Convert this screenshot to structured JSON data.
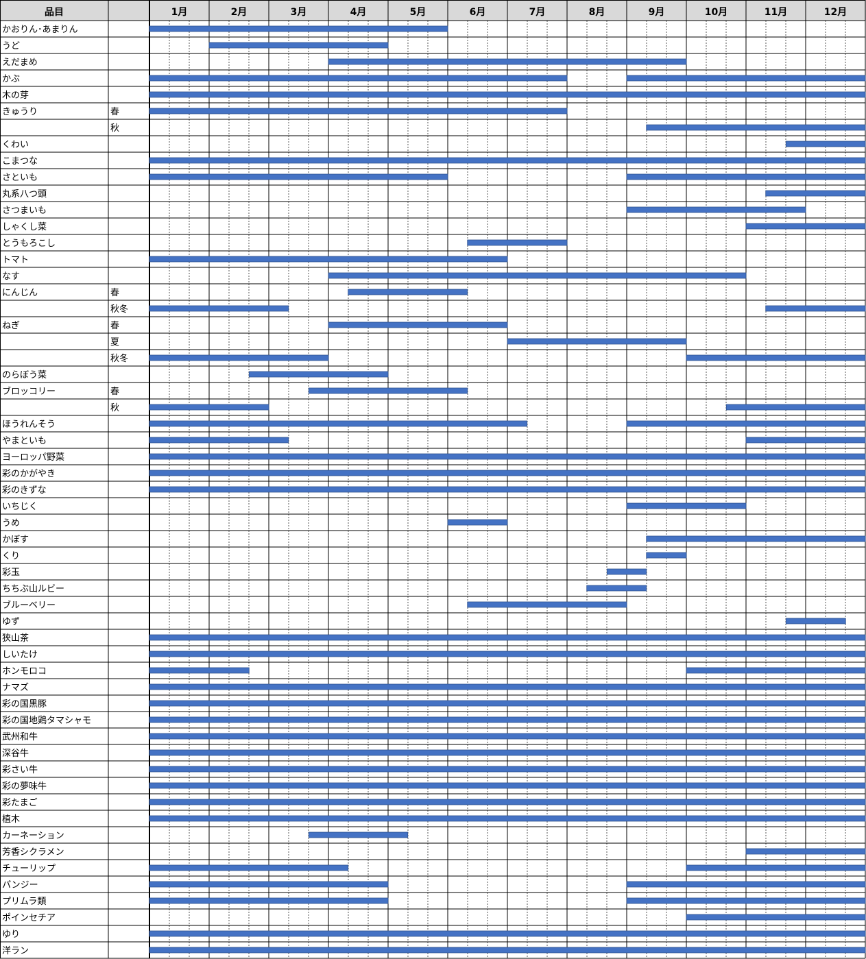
{
  "chart_data": {
    "type": "gantt",
    "header": {
      "item": "品目"
    },
    "months": [
      "1月",
      "2月",
      "3月",
      "4月",
      "5月",
      "6月",
      "7月",
      "8月",
      "9月",
      "10月",
      "11月",
      "12月"
    ],
    "bar_color": "#4472C4",
    "rows": [
      {
        "name": "かおりん･あまりん",
        "season": "",
        "periods": [
          [
            1,
            6
          ]
        ]
      },
      {
        "name": "うど",
        "season": "",
        "periods": [
          [
            2,
            5
          ]
        ]
      },
      {
        "name": "えだまめ",
        "season": "",
        "periods": [
          [
            4,
            10
          ]
        ]
      },
      {
        "name": "かぶ",
        "season": "",
        "periods": [
          [
            1,
            8
          ],
          [
            9,
            13
          ]
        ]
      },
      {
        "name": "木の芽",
        "season": "",
        "periods": [
          [
            1,
            13
          ]
        ]
      },
      {
        "name": "きゅうり",
        "season": "春",
        "periods": [
          [
            1,
            8
          ]
        ]
      },
      {
        "name": "",
        "season": "秋",
        "periods": [
          [
            9.33,
            13
          ]
        ]
      },
      {
        "name": "くわい",
        "season": "",
        "periods": [
          [
            11.67,
            13
          ]
        ]
      },
      {
        "name": "こまつな",
        "season": "",
        "periods": [
          [
            1,
            13
          ]
        ]
      },
      {
        "name": "さといも",
        "season": "",
        "periods": [
          [
            1,
            6
          ],
          [
            9,
            13
          ]
        ]
      },
      {
        "name": "丸系八つ頭",
        "season": "",
        "periods": [
          [
            11.33,
            13
          ]
        ]
      },
      {
        "name": "さつまいも",
        "season": "",
        "periods": [
          [
            9,
            12
          ]
        ]
      },
      {
        "name": "しゃくし菜",
        "season": "",
        "periods": [
          [
            11,
            13
          ]
        ]
      },
      {
        "name": "とうもろこし",
        "season": "",
        "periods": [
          [
            6.33,
            8
          ]
        ]
      },
      {
        "name": "トマト",
        "season": "",
        "periods": [
          [
            1,
            7
          ]
        ]
      },
      {
        "name": "なす",
        "season": "",
        "periods": [
          [
            4,
            11
          ]
        ]
      },
      {
        "name": "にんじん",
        "season": "春",
        "periods": [
          [
            4.33,
            6.33
          ]
        ]
      },
      {
        "name": "",
        "season": "秋冬",
        "periods": [
          [
            1,
            3.33
          ],
          [
            11.33,
            13
          ]
        ]
      },
      {
        "name": "ねぎ",
        "season": "春",
        "periods": [
          [
            4,
            7
          ]
        ]
      },
      {
        "name": "",
        "season": "夏",
        "periods": [
          [
            7,
            10
          ]
        ]
      },
      {
        "name": "",
        "season": "秋冬",
        "periods": [
          [
            1,
            4
          ],
          [
            10,
            13
          ]
        ]
      },
      {
        "name": "のらぼう菜",
        "season": "",
        "periods": [
          [
            2.67,
            5
          ]
        ]
      },
      {
        "name": "ブロッコリー",
        "season": "春",
        "periods": [
          [
            3.67,
            6.33
          ]
        ]
      },
      {
        "name": "",
        "season": "秋",
        "periods": [
          [
            1,
            3
          ]
        ],
        "periods2": [
          [
            10.67,
            13
          ]
        ]
      },
      {
        "name": "ほうれんそう",
        "season": "",
        "periods": [
          [
            1,
            7.33
          ],
          [
            9,
            13
          ]
        ]
      },
      {
        "name": "やまといも",
        "season": "",
        "periods": [
          [
            1,
            3.33
          ],
          [
            11,
            13
          ]
        ]
      },
      {
        "name": "ヨーロッパ野菜",
        "season": "",
        "periods": [
          [
            1,
            13
          ]
        ]
      },
      {
        "name": "彩のかがやき",
        "season": "",
        "periods": [
          [
            1,
            13
          ]
        ]
      },
      {
        "name": "彩のきずな",
        "season": "",
        "periods": [
          [
            1,
            13
          ]
        ]
      },
      {
        "name": "いちじく",
        "season": "",
        "periods": [
          [
            9,
            11
          ]
        ]
      },
      {
        "name": "うめ",
        "season": "",
        "periods": [
          [
            6,
            7
          ]
        ]
      },
      {
        "name": "かぼす",
        "season": "",
        "periods": [
          [
            9.33,
            13
          ]
        ]
      },
      {
        "name": "くり",
        "season": "",
        "periods": [
          [
            9.33,
            10
          ]
        ]
      },
      {
        "name": "彩玉",
        "season": "",
        "periods": [
          [
            8.67,
            9.33
          ]
        ]
      },
      {
        "name": "ちちぶ山ルビー",
        "season": "",
        "periods": [
          [
            8.33,
            9.33
          ]
        ]
      },
      {
        "name": "ブルーベリー",
        "season": "",
        "periods": [
          [
            6.33,
            9
          ]
        ]
      },
      {
        "name": "ゆず",
        "season": "",
        "periods": [
          [
            11.67,
            12.67
          ]
        ]
      },
      {
        "name": "狭山茶",
        "season": "",
        "periods": [
          [
            1,
            13
          ]
        ]
      },
      {
        "name": "しいたけ",
        "season": "",
        "periods": [
          [
            1,
            13
          ]
        ]
      },
      {
        "name": "ホンモロコ",
        "season": "",
        "periods": [
          [
            1,
            2.67
          ],
          [
            10,
            13
          ]
        ]
      },
      {
        "name": "ナマズ",
        "season": "",
        "periods": [
          [
            1,
            13
          ]
        ]
      },
      {
        "name": "彩の国黒豚",
        "season": "",
        "periods": [
          [
            1,
            13
          ]
        ]
      },
      {
        "name": "彩の国地鶏タマシャモ",
        "season": "",
        "periods": [
          [
            1,
            13
          ]
        ]
      },
      {
        "name": "武州和牛",
        "season": "",
        "periods": [
          [
            1,
            13
          ]
        ]
      },
      {
        "name": "深谷牛",
        "season": "",
        "periods": [
          [
            1,
            13
          ]
        ]
      },
      {
        "name": "彩さい牛",
        "season": "",
        "periods": [
          [
            1,
            13
          ]
        ]
      },
      {
        "name": "彩の夢味牛",
        "season": "",
        "periods": [
          [
            1,
            13
          ]
        ]
      },
      {
        "name": "彩たまご",
        "season": "",
        "periods": [
          [
            1,
            13
          ]
        ]
      },
      {
        "name": "植木",
        "season": "",
        "periods": [
          [
            1,
            13
          ]
        ]
      },
      {
        "name": "カーネーション",
        "season": "",
        "periods": [
          [
            3.67,
            5.33
          ]
        ]
      },
      {
        "name": "芳香シクラメン",
        "season": "",
        "periods": [
          [
            11,
            13
          ]
        ]
      },
      {
        "name": "チューリップ",
        "season": "",
        "periods": [
          [
            1,
            4.33
          ],
          [
            10,
            13
          ]
        ]
      },
      {
        "name": "パンジー",
        "season": "",
        "periods": [
          [
            1,
            5
          ],
          [
            9,
            13
          ]
        ]
      },
      {
        "name": "プリムラ類",
        "season": "",
        "periods": [
          [
            1,
            5
          ],
          [
            9,
            13
          ]
        ]
      },
      {
        "name": "ポインセチア",
        "season": "",
        "periods": [
          [
            10,
            13
          ]
        ]
      },
      {
        "name": "ゆり",
        "season": "",
        "periods": [
          [
            1,
            13
          ]
        ]
      },
      {
        "name": "洋ラン",
        "season": "",
        "periods": [
          [
            1,
            13
          ]
        ]
      }
    ]
  }
}
